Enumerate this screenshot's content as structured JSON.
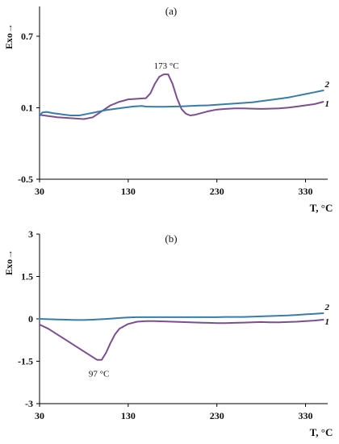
{
  "chart_data": [
    {
      "type": "line",
      "panel_label": "(a)",
      "ylabel": "Exo→",
      "xlabel": "T, °C",
      "xlim": [
        30,
        355
      ],
      "ylim": [
        -0.5,
        0.95
      ],
      "xticks": [
        "30",
        "130",
        "230",
        "330"
      ],
      "yticks": [
        "-0.5",
        "0.1",
        "0.7"
      ],
      "annotations": [
        {
          "text": "173 °C",
          "x": 173,
          "y": 0.36
        }
      ],
      "series": [
        {
          "name": "1",
          "color": "#7b4f8e",
          "x": [
            30,
            35,
            40,
            50,
            60,
            70,
            80,
            90,
            100,
            110,
            120,
            130,
            140,
            150,
            155,
            160,
            165,
            170,
            175,
            180,
            185,
            190,
            195,
            200,
            205,
            210,
            220,
            230,
            240,
            250,
            260,
            270,
            280,
            290,
            300,
            310,
            320,
            330,
            340,
            350
          ],
          "y": [
            0.04,
            0.035,
            0.03,
            0.02,
            0.015,
            0.01,
            0.005,
            0.02,
            0.07,
            0.12,
            0.15,
            0.17,
            0.175,
            0.18,
            0.22,
            0.3,
            0.36,
            0.38,
            0.38,
            0.3,
            0.18,
            0.09,
            0.05,
            0.035,
            0.04,
            0.05,
            0.07,
            0.085,
            0.09,
            0.095,
            0.095,
            0.092,
            0.09,
            0.092,
            0.095,
            0.1,
            0.11,
            0.12,
            0.13,
            0.15
          ]
        },
        {
          "name": "2",
          "color": "#3a7ca8",
          "x": [
            30,
            33,
            38,
            45,
            55,
            65,
            75,
            85,
            95,
            105,
            115,
            125,
            135,
            145,
            150,
            160,
            170,
            180,
            190,
            200,
            210,
            220,
            230,
            240,
            250,
            260,
            270,
            280,
            290,
            300,
            310,
            320,
            330,
            340,
            350
          ],
          "y": [
            0.03,
            0.06,
            0.065,
            0.055,
            0.045,
            0.035,
            0.035,
            0.05,
            0.065,
            0.08,
            0.09,
            0.1,
            0.11,
            0.115,
            0.11,
            0.108,
            0.108,
            0.11,
            0.112,
            0.115,
            0.118,
            0.12,
            0.125,
            0.13,
            0.135,
            0.14,
            0.145,
            0.155,
            0.165,
            0.175,
            0.185,
            0.2,
            0.215,
            0.23,
            0.245
          ]
        }
      ]
    },
    {
      "type": "line",
      "panel_label": "(b)",
      "ylabel": "Exo→",
      "xlabel": "T, °C",
      "xlim": [
        30,
        355
      ],
      "ylim": [
        -3,
        3
      ],
      "xticks": [
        "30",
        "130",
        "230",
        "330"
      ],
      "yticks": [
        "-3",
        "-1.5",
        "0",
        "1.5",
        "3"
      ],
      "annotations": [
        {
          "text": "97 °C",
          "x": 97,
          "y": -1.7
        }
      ],
      "series": [
        {
          "name": "1",
          "color": "#7b4f8e",
          "x": [
            30,
            40,
            50,
            60,
            70,
            80,
            90,
            95,
            100,
            105,
            110,
            115,
            120,
            130,
            140,
            150,
            160,
            170,
            180,
            190,
            200,
            210,
            220,
            230,
            240,
            250,
            260,
            270,
            280,
            290,
            300,
            310,
            320,
            330,
            340,
            350
          ],
          "y": [
            -0.2,
            -0.35,
            -0.55,
            -0.75,
            -0.95,
            -1.15,
            -1.35,
            -1.45,
            -1.45,
            -1.2,
            -0.85,
            -0.55,
            -0.35,
            -0.18,
            -0.1,
            -0.08,
            -0.08,
            -0.09,
            -0.1,
            -0.11,
            -0.12,
            -0.13,
            -0.14,
            -0.15,
            -0.15,
            -0.14,
            -0.13,
            -0.12,
            -0.11,
            -0.12,
            -0.12,
            -0.11,
            -0.1,
            -0.08,
            -0.06,
            -0.03
          ]
        },
        {
          "name": "2",
          "color": "#3a7ca8",
          "x": [
            30,
            40,
            50,
            60,
            70,
            80,
            90,
            100,
            110,
            120,
            130,
            140,
            150,
            160,
            170,
            180,
            190,
            200,
            210,
            220,
            230,
            240,
            250,
            260,
            270,
            280,
            290,
            300,
            310,
            320,
            330,
            340,
            350
          ],
          "y": [
            0.0,
            -0.01,
            -0.02,
            -0.03,
            -0.04,
            -0.04,
            -0.03,
            -0.01,
            0.01,
            0.03,
            0.05,
            0.06,
            0.06,
            0.06,
            0.06,
            0.06,
            0.06,
            0.06,
            0.06,
            0.06,
            0.06,
            0.07,
            0.07,
            0.07,
            0.08,
            0.09,
            0.1,
            0.11,
            0.12,
            0.14,
            0.16,
            0.18,
            0.2
          ]
        }
      ]
    }
  ]
}
